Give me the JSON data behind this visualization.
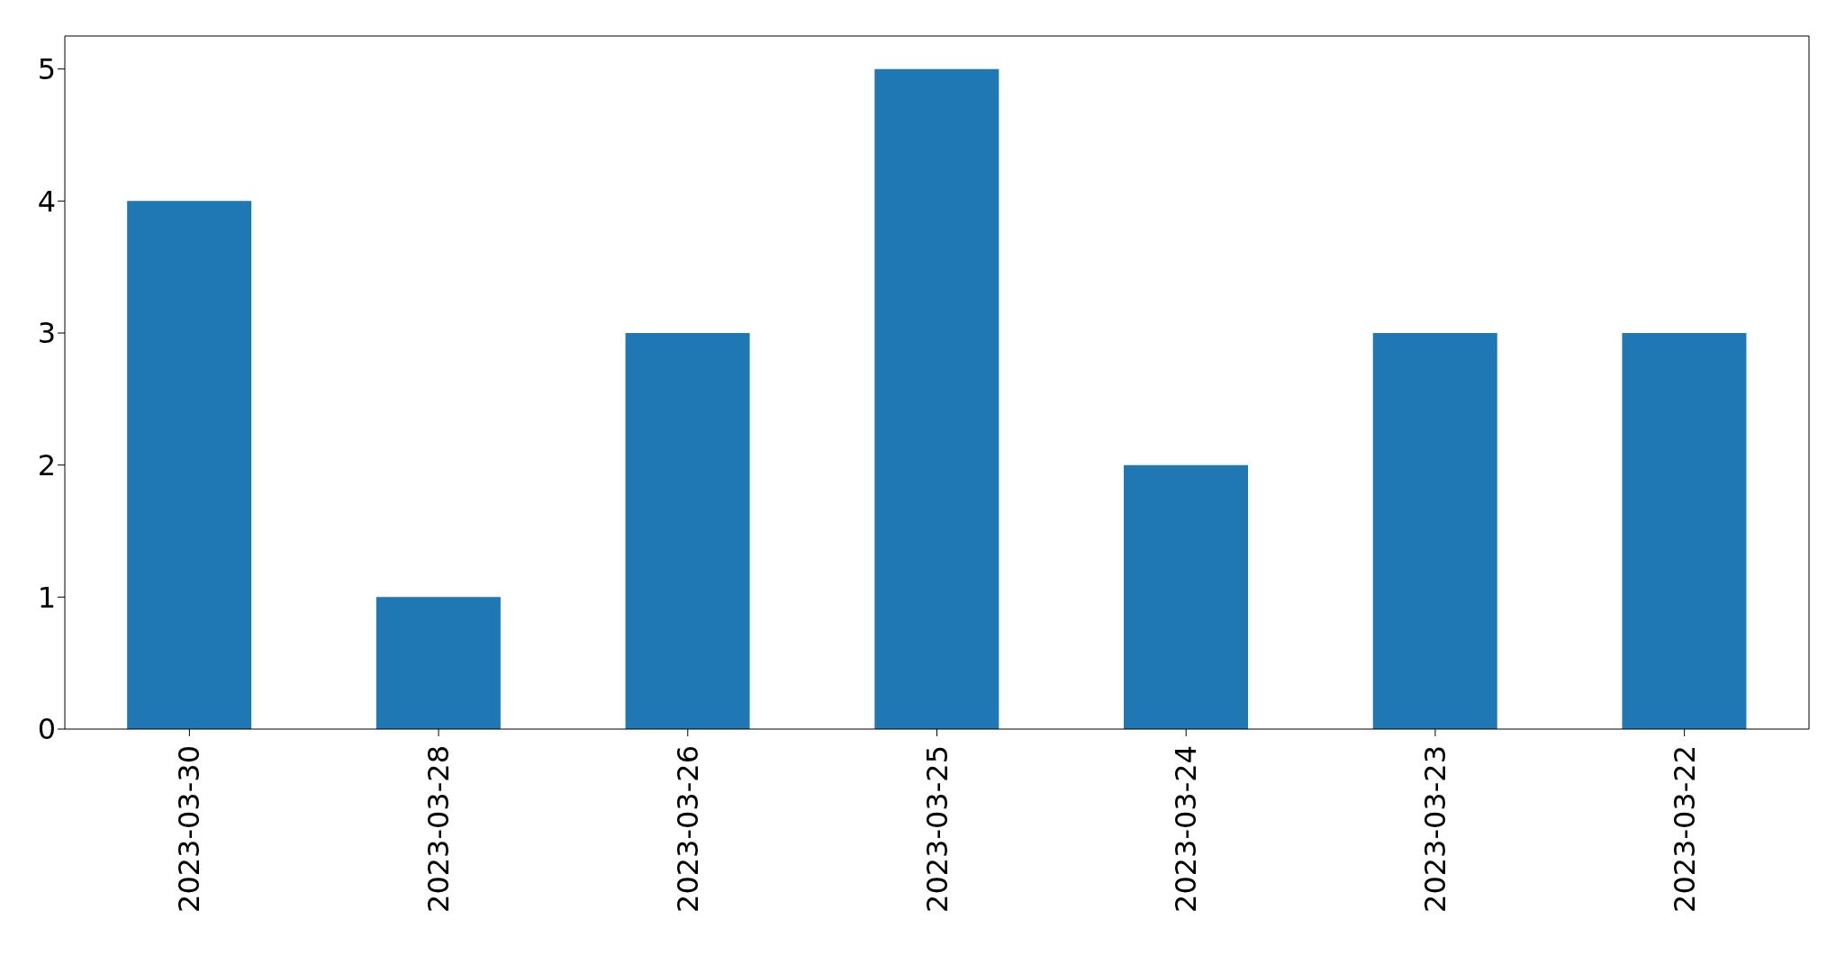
{
  "chart_data": {
    "type": "bar",
    "categories": [
      "2023-03-30",
      "2023-03-28",
      "2023-03-26",
      "2023-03-25",
      "2023-03-24",
      "2023-03-23",
      "2023-03-22"
    ],
    "values": [
      4,
      1,
      3,
      5,
      2,
      3,
      3
    ],
    "color": "#1f77b4",
    "ylim": [
      0,
      5.25
    ],
    "yticks": [
      0,
      1,
      2,
      3,
      4,
      5
    ],
    "grid": false
  }
}
